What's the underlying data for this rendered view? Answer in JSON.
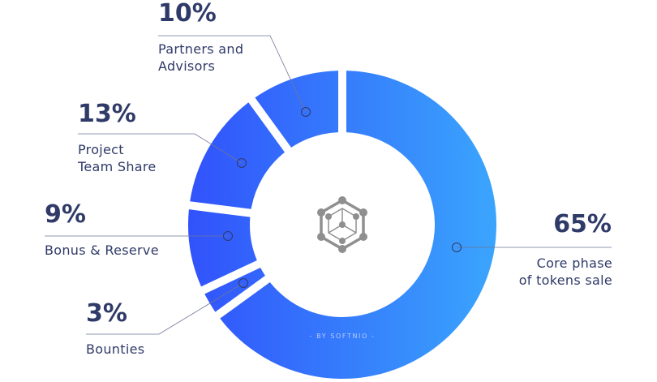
{
  "chart_data": {
    "type": "pie",
    "variant": "donut",
    "colors": {
      "gradient_start": "#3152fb",
      "gradient_end": "#3aa5fd",
      "text": "#2f3a68",
      "leader": "#6e7596",
      "icon": "#8f8f8f"
    },
    "slices": [
      {
        "label_lines": [
          "Core phase",
          "of tokens sale"
        ],
        "value": 65,
        "value_label": "65%"
      },
      {
        "label_lines": [
          "Bounties"
        ],
        "value": 3,
        "value_label": "3%"
      },
      {
        "label_lines": [
          "Bonus & Reserve"
        ],
        "value": 9,
        "value_label": "9%"
      },
      {
        "label_lines": [
          "Project",
          "Team Share"
        ],
        "value": 13,
        "value_label": "13%"
      },
      {
        "label_lines": [
          "Partners and",
          "Advisors"
        ],
        "value": 10,
        "value_label": "10%"
      }
    ],
    "center_icon": "hexagon-network-icon",
    "credit": "- BY SOFTNIO -"
  }
}
